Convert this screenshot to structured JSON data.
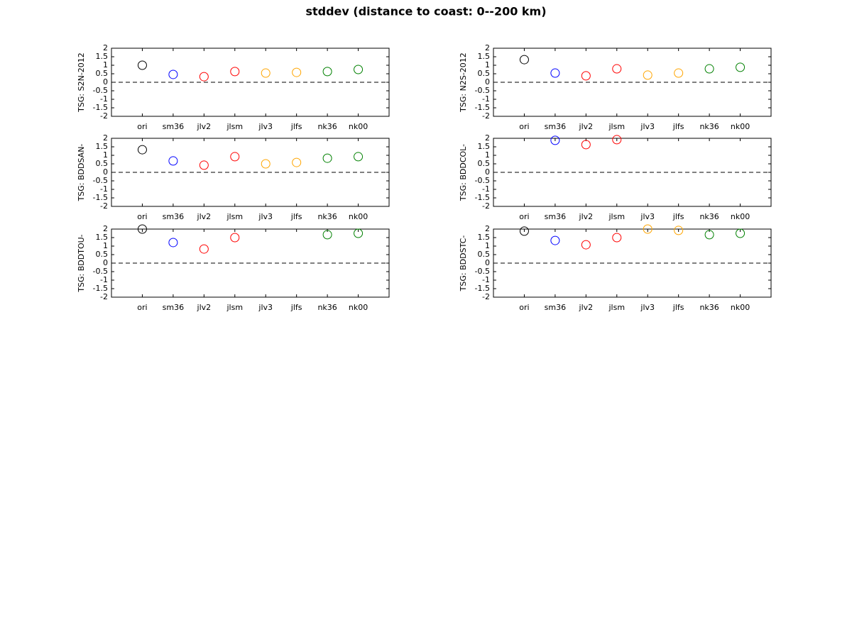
{
  "title": "stddev (distance to coast: 0--200 km)",
  "chart_data": [
    {
      "type": "scatter",
      "ylabel": "TSG: S2N-2012",
      "categories": [
        "ori",
        "sm36",
        "jlv2",
        "jlsm",
        "jlv3",
        "jlfs",
        "nk36",
        "nk00"
      ],
      "values": [
        1.0,
        0.46,
        0.33,
        0.63,
        0.54,
        0.58,
        0.63,
        0.75
      ],
      "colors": [
        "#000000",
        "#0000ff",
        "#ff0000",
        "#ff0000",
        "#ffa500",
        "#ffa500",
        "#008000",
        "#008000"
      ],
      "ylim": [
        -2,
        2
      ],
      "yticks": [
        -2,
        -1.5,
        -1,
        -0.5,
        0,
        0.5,
        1,
        1.5,
        2
      ],
      "hline": 0
    },
    {
      "type": "scatter",
      "ylabel": "TSG: N2S-2012",
      "categories": [
        "ori",
        "sm36",
        "jlv2",
        "jlsm",
        "jlv3",
        "jlfs",
        "nk36",
        "nk00"
      ],
      "values": [
        1.33,
        0.54,
        0.38,
        0.79,
        0.42,
        0.54,
        0.79,
        0.88
      ],
      "colors": [
        "#000000",
        "#0000ff",
        "#ff0000",
        "#ff0000",
        "#ffa500",
        "#ffa500",
        "#008000",
        "#008000"
      ],
      "ylim": [
        -2,
        2
      ],
      "yticks": [
        -2,
        -1.5,
        -1,
        -0.5,
        0,
        0.5,
        1,
        1.5,
        2
      ],
      "hline": 0
    },
    {
      "type": "scatter",
      "ylabel": "TSG: BDDSAN-",
      "categories": [
        "ori",
        "sm36",
        "jlv2",
        "jlsm",
        "jlv3",
        "jlfs",
        "nk36",
        "nk00"
      ],
      "values": [
        1.33,
        0.67,
        0.42,
        0.92,
        0.5,
        0.58,
        0.83,
        0.92
      ],
      "colors": [
        "#000000",
        "#0000ff",
        "#ff0000",
        "#ff0000",
        "#ffa500",
        "#ffa500",
        "#008000",
        "#008000"
      ],
      "ylim": [
        -2,
        2
      ],
      "yticks": [
        -2,
        -1.5,
        -1,
        -0.5,
        0,
        0.5,
        1,
        1.5,
        2
      ],
      "hline": 0
    },
    {
      "type": "scatter",
      "ylabel": "TSG: BDDCOL-",
      "categories": [
        "ori",
        "sm36",
        "jlv2",
        "jlsm",
        "jlv3",
        "jlfs",
        "nk36",
        "nk00"
      ],
      "values": [
        null,
        1.88,
        1.63,
        1.92,
        null,
        null,
        null,
        null
      ],
      "colors": [
        "#000000",
        "#0000ff",
        "#ff0000",
        "#ff0000",
        "#ffa500",
        "#ffa500",
        "#008000",
        "#008000"
      ],
      "ylim": [
        -2,
        2
      ],
      "yticks": [
        -2,
        -1.5,
        -1,
        -0.5,
        0,
        0.5,
        1,
        1.5,
        2
      ],
      "hline": 0
    },
    {
      "type": "scatter",
      "ylabel": "TSG: BDDTOU-",
      "categories": [
        "ori",
        "sm36",
        "jlv2",
        "jlsm",
        "jlv3",
        "jlfs",
        "nk36",
        "nk00"
      ],
      "values": [
        2.0,
        1.21,
        0.83,
        1.5,
        null,
        null,
        1.67,
        1.75
      ],
      "colors": [
        "#000000",
        "#0000ff",
        "#ff0000",
        "#ff0000",
        "#ffa500",
        "#ffa500",
        "#008000",
        "#008000"
      ],
      "ylim": [
        -2,
        2
      ],
      "yticks": [
        -2,
        -1.5,
        -1,
        -0.5,
        0,
        0.5,
        1,
        1.5,
        2
      ],
      "hline": 0
    },
    {
      "type": "scatter",
      "ylabel": "TSG: BDDSTC-",
      "categories": [
        "ori",
        "sm36",
        "jlv2",
        "jlsm",
        "jlv3",
        "jlfs",
        "nk36",
        "nk00"
      ],
      "values": [
        1.88,
        1.33,
        1.08,
        1.5,
        2.0,
        1.92,
        1.67,
        1.75
      ],
      "colors": [
        "#000000",
        "#0000ff",
        "#ff0000",
        "#ff0000",
        "#ffa500",
        "#ffa500",
        "#008000",
        "#008000"
      ],
      "ylim": [
        -2,
        2
      ],
      "yticks": [
        -2,
        -1.5,
        -1,
        -0.5,
        0,
        0.5,
        1,
        1.5,
        2
      ],
      "hline": 0
    }
  ]
}
